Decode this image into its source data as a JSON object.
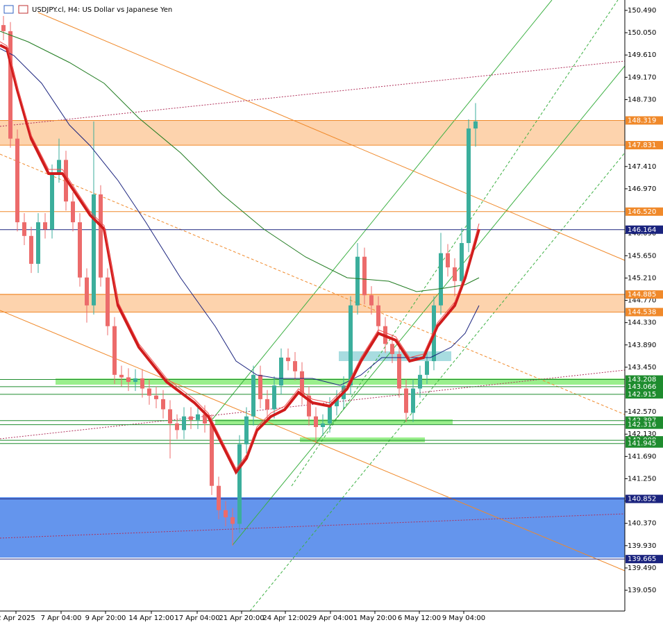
{
  "chart_data": {
    "type": "candlestick",
    "title": "USDJPY.cl, H4:  US Dollar vs Japanese Yen",
    "up_color": "#3bae9c",
    "down_color": "#ec6b6b",
    "xlim": [
      -0.5,
      89.5
    ],
    "ylim": [
      138.64,
      150.695
    ],
    "xticks": [
      {
        "value": 1.8,
        "label": "2 Apr 2025"
      },
      {
        "value": 8.3,
        "label": "7 Apr 04:00"
      },
      {
        "value": 14.7,
        "label": "9 Apr 20:00"
      },
      {
        "value": 21.3,
        "label": "14 Apr 12:00"
      },
      {
        "value": 27.9,
        "label": "17 Apr 04:00"
      },
      {
        "value": 34.3,
        "label": "21 Apr 20:00"
      },
      {
        "value": 40.6,
        "label": "24 Apr 12:00"
      },
      {
        "value": 47.1,
        "label": "29 Apr 04:00"
      },
      {
        "value": 53.5,
        "label": "1 May 20:00"
      },
      {
        "value": 59.9,
        "label": "6 May 12:00"
      },
      {
        "value": 66.3,
        "label": "9 May 04:00"
      }
    ],
    "yticks": [
      {
        "value": 150.49,
        "label": "150.490"
      },
      {
        "value": 150.05,
        "label": "150.050"
      },
      {
        "value": 149.61,
        "label": "149.610"
      },
      {
        "value": 149.17,
        "label": "149.170"
      },
      {
        "value": 148.73,
        "label": "148.730"
      },
      {
        "value": 147.41,
        "label": "147.410"
      },
      {
        "value": 146.97,
        "label": "146.970"
      },
      {
        "value": 146.09,
        "label": "146.090"
      },
      {
        "value": 145.65,
        "label": "145.650"
      },
      {
        "value": 145.21,
        "label": "145.210"
      },
      {
        "value": 144.77,
        "label": "144.770"
      },
      {
        "value": 144.33,
        "label": "144.330"
      },
      {
        "value": 143.89,
        "label": "143.890"
      },
      {
        "value": 143.45,
        "label": "143.450"
      },
      {
        "value": 142.57,
        "label": "142.570"
      },
      {
        "value": 142.13,
        "label": "142.130"
      },
      {
        "value": 141.69,
        "label": "141.690"
      },
      {
        "value": 141.25,
        "label": "141.250"
      },
      {
        "value": 140.81,
        "label": "140.810"
      },
      {
        "value": 140.37,
        "label": "140.370"
      },
      {
        "value": 139.93,
        "label": "139.930"
      },
      {
        "value": 139.49,
        "label": "139.490"
      },
      {
        "value": 139.05,
        "label": "139.050"
      }
    ],
    "levels": [
      {
        "value": 148.319,
        "label": "148.319",
        "color": "#f0892a"
      },
      {
        "value": 147.831,
        "label": "147.831",
        "color": "#f0892a"
      },
      {
        "value": 146.52,
        "label": "146.520",
        "color": "#f0892a"
      },
      {
        "value": 146.164,
        "label": "146.164",
        "color": "#1a237e"
      },
      {
        "value": 144.885,
        "label": "144.885",
        "color": "#f0892a"
      },
      {
        "value": 144.538,
        "label": "144.538",
        "color": "#f0892a"
      },
      {
        "value": 143.208,
        "label": "143.208",
        "color": "#1e8c2e"
      },
      {
        "value": 143.066,
        "label": "143.066",
        "color": "#1e8c2e"
      },
      {
        "value": 142.915,
        "label": "142.915",
        "color": "#1e8c2e"
      },
      {
        "value": 142.397,
        "label": "142.397",
        "color": "#1e8c2e"
      },
      {
        "value": 142.316,
        "label": "142.316",
        "color": "#1e8c2e"
      },
      {
        "value": 142.008,
        "label": "142.008",
        "color": "#1e8c2e"
      },
      {
        "value": 141.945,
        "label": "141.945",
        "color": "#1e8c2e"
      },
      {
        "value": 140.852,
        "label": "140.852",
        "color": "#1a237e"
      },
      {
        "value": 139.665,
        "label": "139.665",
        "color": "#1a237e"
      }
    ],
    "open": [
      150.2,
      150.08,
      147.96,
      146.31,
      146.04,
      145.49,
      146.31,
      146.17,
      147.27,
      147.54,
      146.72,
      146.31,
      145.22,
      144.67,
      146.86,
      145.22,
      144.26,
      143.3,
      143.25,
      143.16,
      143.23,
      143.03,
      142.89,
      142.82,
      142.62,
      142.34,
      142.21,
      142.48,
      142.41,
      142.52,
      142.34,
      141.11,
      140.63,
      140.49,
      140.36,
      141.93,
      142.48,
      143.3,
      142.82,
      142.62,
      143.09,
      143.64,
      143.57,
      143.37,
      142.89,
      142.48,
      142.27,
      142.34,
      142.68,
      142.82,
      143.09,
      144.67,
      145.63,
      144.87,
      144.67,
      144.26,
      143.91,
      143.71,
      143.03,
      142.55,
      143.03,
      143.3,
      143.57,
      144.67,
      145.7,
      145.42,
      145.15,
      145.9,
      148.16
    ],
    "high": [
      150.38,
      150.26,
      148.14,
      146.49,
      146.22,
      146.49,
      146.49,
      147.45,
      147.96,
      147.72,
      146.9,
      146.49,
      145.4,
      148.3,
      147.04,
      145.4,
      144.44,
      143.48,
      143.43,
      143.41,
      143.41,
      143.21,
      143.07,
      143.0,
      142.8,
      142.52,
      142.66,
      142.66,
      142.7,
      142.7,
      142.52,
      141.29,
      140.81,
      140.67,
      142.11,
      142.66,
      143.48,
      143.48,
      143.0,
      143.27,
      143.82,
      143.82,
      143.75,
      143.55,
      143.07,
      142.66,
      142.52,
      142.86,
      143.0,
      143.27,
      144.85,
      145.9,
      145.81,
      145.05,
      144.85,
      144.44,
      144.09,
      143.89,
      143.21,
      143.21,
      143.48,
      143.75,
      144.85,
      146.1,
      145.88,
      145.6,
      146.2,
      148.34,
      148.66
    ],
    "low": [
      149.9,
      147.78,
      146.13,
      145.86,
      145.31,
      145.31,
      145.99,
      145.99,
      147.09,
      146.54,
      146.13,
      145.04,
      144.33,
      144.49,
      145.04,
      144.08,
      143.12,
      143.07,
      142.98,
      142.98,
      142.85,
      142.71,
      142.64,
      142.44,
      141.65,
      142.03,
      142.03,
      142.23,
      142.23,
      142.16,
      140.93,
      140.45,
      140.31,
      139.93,
      140.18,
      141.75,
      142.3,
      142.64,
      142.44,
      142.44,
      142.91,
      143.39,
      143.19,
      142.71,
      142.3,
      141.95,
      142.09,
      142.16,
      142.5,
      142.64,
      142.91,
      144.49,
      144.69,
      144.49,
      144.08,
      143.73,
      143.53,
      142.85,
      142.37,
      142.37,
      142.85,
      143.12,
      143.39,
      144.49,
      145.24,
      144.85,
      144.97,
      145.72,
      147.8
    ],
    "close": [
      150.08,
      147.96,
      146.31,
      146.04,
      145.49,
      146.31,
      146.17,
      147.27,
      147.54,
      146.72,
      146.31,
      145.22,
      144.67,
      146.86,
      145.22,
      144.26,
      143.3,
      143.25,
      143.16,
      143.23,
      143.03,
      142.89,
      142.82,
      142.62,
      142.34,
      142.21,
      142.48,
      142.41,
      142.52,
      142.34,
      141.11,
      140.63,
      140.49,
      140.36,
      141.93,
      142.48,
      143.3,
      142.82,
      142.62,
      143.09,
      143.64,
      143.57,
      143.37,
      142.89,
      142.48,
      142.27,
      142.34,
      142.68,
      142.82,
      143.09,
      144.67,
      145.63,
      144.87,
      144.67,
      144.26,
      143.91,
      143.71,
      143.03,
      142.55,
      143.03,
      143.3,
      143.57,
      144.67,
      145.7,
      145.42,
      145.15,
      145.9,
      148.16,
      148.3
    ]
  }
}
